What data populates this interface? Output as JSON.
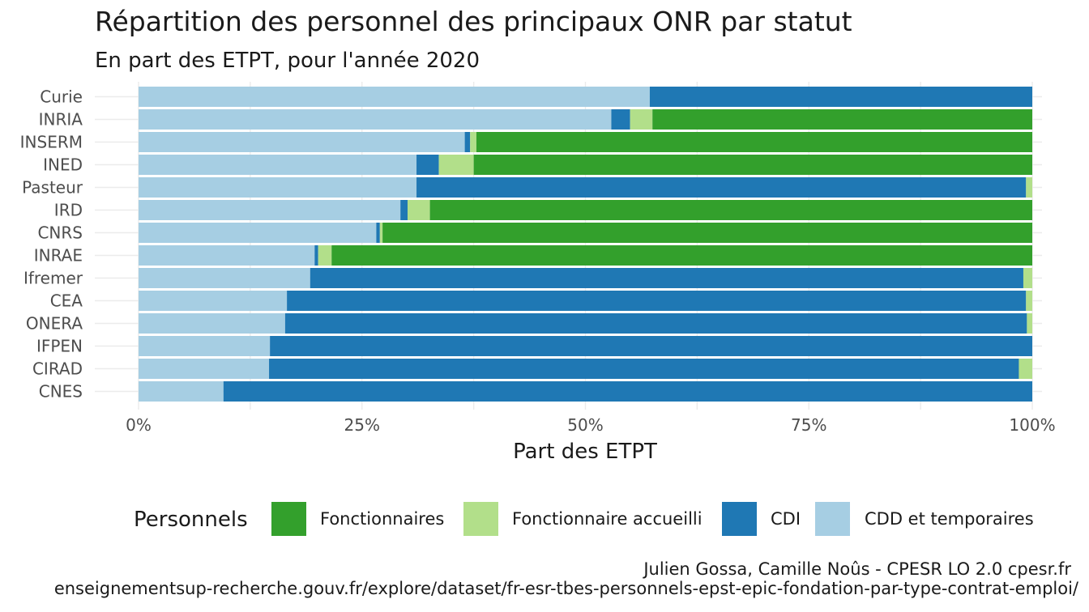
{
  "chart_data": {
    "type": "bar",
    "orientation": "horizontal",
    "stacked": true,
    "title": "Répartition des personnel des principaux ONR par statut",
    "subtitle": "En part des ETPT, pour l'année 2020",
    "xlabel": "Part des ETPT",
    "ylabel": "",
    "xlim": [
      0,
      1
    ],
    "x_ticks": [
      "0%",
      "25%",
      "50%",
      "75%",
      "100%"
    ],
    "grid": true,
    "legend_title": "Personnels",
    "legend_position": "bottom",
    "categories": [
      "Curie",
      "INRIA",
      "INSERM",
      "INED",
      "Pasteur",
      "IRD",
      "CNRS",
      "INRAE",
      "Ifremer",
      "CEA",
      "ONERA",
      "IFPEN",
      "CIRAD",
      "CNES"
    ],
    "series": [
      {
        "name": "CDD et temporaires",
        "color": "#a6cee3",
        "values": [
          0.572,
          0.529,
          0.365,
          0.311,
          0.311,
          0.293,
          0.266,
          0.197,
          0.192,
          0.166,
          0.164,
          0.147,
          0.146,
          0.095
        ]
      },
      {
        "name": "CDI",
        "color": "#1f78b4",
        "values": [
          0.428,
          0.021,
          0.006,
          0.025,
          0.682,
          0.008,
          0.004,
          0.004,
          0.798,
          0.827,
          0.83,
          0.853,
          0.839,
          0.905
        ]
      },
      {
        "name": "Fonctionnaire accueilli",
        "color": "#b2df8a",
        "values": [
          0.0,
          0.025,
          0.007,
          0.039,
          0.007,
          0.025,
          0.003,
          0.015,
          0.01,
          0.007,
          0.006,
          0.0,
          0.015,
          0.0
        ]
      },
      {
        "name": "Fonctionnaires",
        "color": "#33a02c",
        "values": [
          0.0,
          0.425,
          0.622,
          0.625,
          0.0,
          0.674,
          0.727,
          0.784,
          0.0,
          0.0,
          0.0,
          0.0,
          0.0,
          0.0
        ]
      }
    ],
    "legend_order": [
      "Fonctionnaires",
      "Fonctionnaire accueilli",
      "CDI",
      "CDD et temporaires"
    ]
  },
  "caption": {
    "line1": "Julien Gossa, Camille Noûs - CPESR LO 2.0 cpesr.fr",
    "line2": "enseignementsup-recherche.gouv.fr/explore/dataset/fr-esr-tbes-personnels-epst-epic-fondation-par-type-contrat-emploi/"
  }
}
